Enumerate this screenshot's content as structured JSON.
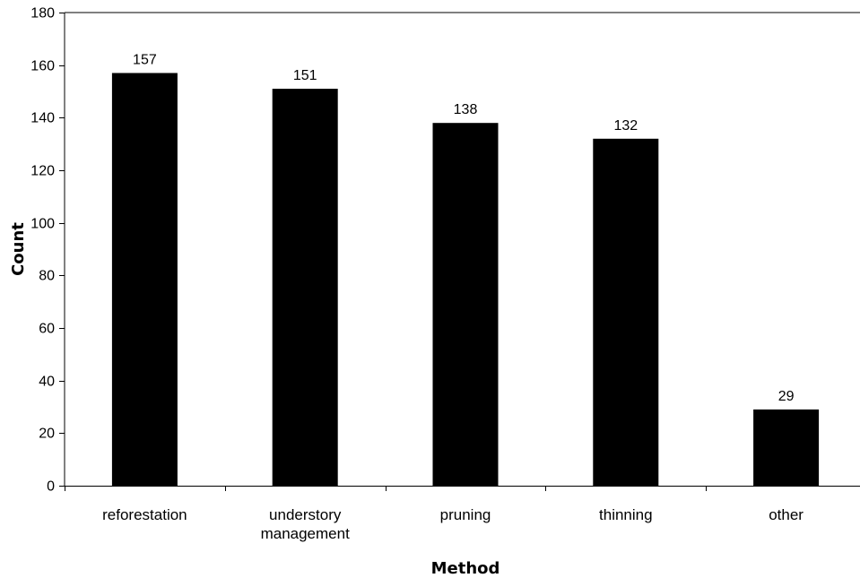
{
  "chart_data": {
    "type": "bar",
    "title": "",
    "xlabel": "Method",
    "ylabel": "Count",
    "categories": [
      "reforestation",
      "understory management",
      "pruning",
      "thinning",
      "other"
    ],
    "category_label_lines": [
      [
        "reforestation"
      ],
      [
        "understory",
        "management"
      ],
      [
        "pruning"
      ],
      [
        "thinning"
      ],
      [
        "other"
      ]
    ],
    "values": [
      157,
      151,
      138,
      132,
      29
    ],
    "data_labels": [
      "157",
      "151",
      "138",
      "132",
      "29"
    ],
    "ylim": [
      0,
      180
    ],
    "yticks": [
      "0",
      "20",
      "40",
      "60",
      "80",
      "100",
      "120",
      "140",
      "160",
      "180"
    ],
    "grid": false,
    "legend": "none",
    "bar_color": "#000000"
  }
}
